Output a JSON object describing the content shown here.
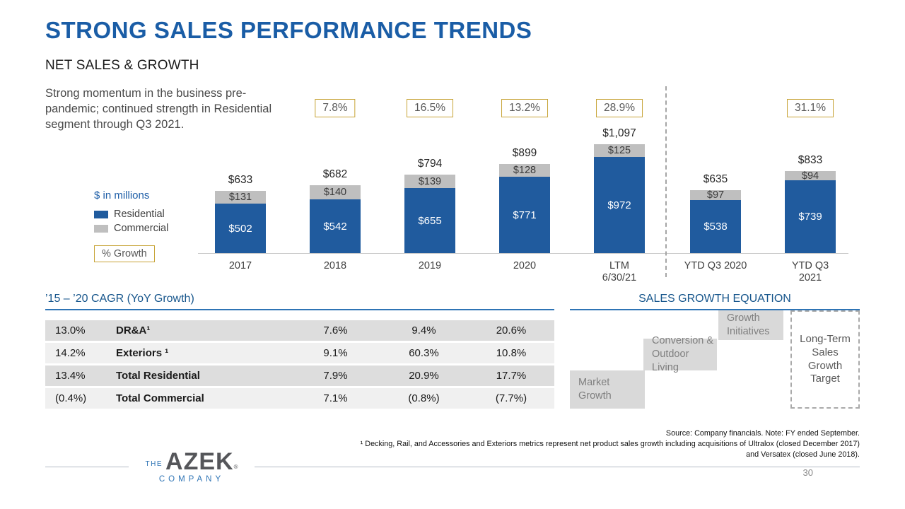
{
  "slide": {
    "title": "STRONG SALES PERFORMANCE TRENDS",
    "commentary": "Strong momentum in the business pre-\npandemic; continued strength in Residential\nsegment through Q3 2021.",
    "page_number": "30"
  },
  "legend": {
    "units_label": "$ in millions",
    "items": [
      {
        "label": "Residential",
        "color": "#205B9E"
      },
      {
        "label": "Commercial",
        "color": "#BFBFBF"
      }
    ],
    "growth_box_label": "% Growth"
  },
  "chart_data": {
    "type": "bar",
    "stacked": true,
    "title": "NET SALES & GROWTH",
    "unit": "$ in millions",
    "ylim": [
      0,
      1200
    ],
    "categories": [
      "2017",
      "2018",
      "2019",
      "2020",
      "LTM\n6/30/21",
      "YTD Q3 2020",
      "YTD Q3 2021"
    ],
    "series": [
      {
        "name": "Residential",
        "color": "#205B9E",
        "values": [
          502,
          542,
          655,
          771,
          972,
          538,
          739
        ],
        "labels": [
          "$502",
          "$542",
          "$655",
          "$771",
          "$972",
          "$538",
          "$739"
        ]
      },
      {
        "name": "Commercial",
        "color": "#BFBFBF",
        "values": [
          131,
          140,
          139,
          128,
          125,
          97,
          94
        ],
        "labels": [
          "$131",
          "$140",
          "$139",
          "$128",
          "$125",
          "$97",
          "$94"
        ]
      }
    ],
    "totals": [
      633,
      682,
      794,
      899,
      1097,
      635,
      833
    ],
    "total_labels": [
      "$633",
      "$682",
      "$794",
      "$899",
      "$1,097",
      "$635",
      "$833"
    ],
    "growth_labels": [
      null,
      "7.8%",
      "16.5%",
      "13.2%",
      "28.9%",
      null,
      "31.1%"
    ],
    "separator_after_index": 4
  },
  "cagr_table": {
    "heading": "’15 – ’20 CAGR (YoY Growth)",
    "rows": [
      {
        "cagr": "13.0%",
        "label": "DR&A¹",
        "values": [
          "7.6%",
          "9.4%",
          "20.6%"
        ]
      },
      {
        "cagr": "14.2%",
        "label": "Exteriors ¹",
        "values": [
          "9.1%",
          "60.3%",
          "10.8%"
        ]
      },
      {
        "cagr": "13.4%",
        "label": "Total Residential",
        "values": [
          "7.9%",
          "20.9%",
          "17.7%"
        ]
      },
      {
        "cagr": "(0.4%)",
        "label": "Total Commercial",
        "values": [
          "7.1%",
          "(0.8%)",
          "(7.7%)"
        ]
      }
    ]
  },
  "growth_equation": {
    "heading": "SALES GROWTH EQUATION",
    "steps": [
      "Market\nGrowth",
      "Conversion &\nOutdoor Living",
      "Growth\nInitiatives"
    ],
    "target": "Long-Term\nSales\nGrowth\nTarget"
  },
  "footnotes": {
    "source": "Source: Company financials.  Note: FY ended September.",
    "note1": "¹ Decking, Rail, and Accessories and Exteriors metrics represent net product sales growth including acquisitions of Ultralox (closed December 2017) and Versatex (closed June 2018)."
  },
  "logo": {
    "the": "THE",
    "name": "AZEK",
    "reg": "®",
    "company": "COMPANY"
  }
}
